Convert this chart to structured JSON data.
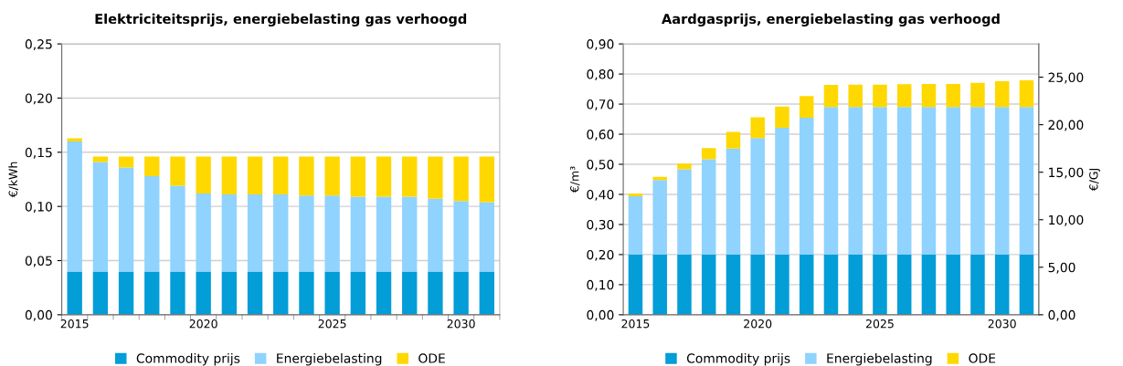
{
  "chart_data": [
    {
      "type": "bar",
      "title": "Elektriciteitsprijs, energiebelasting gas verhoogd",
      "ylabel": "€/kWh",
      "stacked": true,
      "grid": "y",
      "legend": "bottom",
      "categories": [
        "2015",
        null,
        null,
        null,
        null,
        "2020",
        null,
        null,
        null,
        null,
        "2025",
        null,
        null,
        null,
        null,
        "2030",
        null
      ],
      "ylim": [
        0,
        0.25
      ],
      "yticks": [
        {
          "value": 0,
          "label": "0,00"
        },
        {
          "value": 0.05,
          "label": "0,05"
        },
        {
          "value": 0.1,
          "label": "0,10"
        },
        {
          "value": 0.15,
          "label": "0,15"
        },
        {
          "value": 0.2,
          "label": "0,20"
        },
        {
          "value": 0.25,
          "label": "0,25"
        }
      ],
      "series": [
        {
          "name": "Commodity prijs",
          "color": "#039dd8",
          "values": [
            0.04,
            0.04,
            0.04,
            0.04,
            0.04,
            0.04,
            0.04,
            0.04,
            0.04,
            0.04,
            0.04,
            0.04,
            0.04,
            0.04,
            0.04,
            0.04,
            0.04
          ]
        },
        {
          "name": "Energiebelasting",
          "color": "#8fd3fe",
          "values": [
            0.12,
            0.101,
            0.096,
            0.088,
            0.079,
            0.072,
            0.071,
            0.071,
            0.071,
            0.07,
            0.07,
            0.069,
            0.069,
            0.069,
            0.067,
            0.065,
            0.064
          ]
        },
        {
          "name": "ODE",
          "color": "#ffd800",
          "values": [
            0.003,
            0.005,
            0.01,
            0.018,
            0.027,
            0.034,
            0.035,
            0.035,
            0.035,
            0.036,
            0.036,
            0.037,
            0.037,
            0.037,
            0.039,
            0.041,
            0.042
          ]
        }
      ]
    },
    {
      "type": "bar",
      "title": "Aardgasprijs, energiebelasting gas verhoogd",
      "ylabel": "€/m³",
      "y2label": "€/GJ",
      "stacked": true,
      "grid": "y",
      "legend": "bottom",
      "categories": [
        "2015",
        null,
        null,
        null,
        null,
        "2020",
        null,
        null,
        null,
        null,
        "2025",
        null,
        null,
        null,
        null,
        "2030",
        null
      ],
      "ylim": [
        0,
        0.9
      ],
      "yticks": [
        {
          "value": 0,
          "label": "0,00"
        },
        {
          "value": 0.1,
          "label": "0,10"
        },
        {
          "value": 0.2,
          "label": "0,20"
        },
        {
          "value": 0.3,
          "label": "0,30"
        },
        {
          "value": 0.4,
          "label": "0,40"
        },
        {
          "value": 0.5,
          "label": "0,50"
        },
        {
          "value": 0.6,
          "label": "0,60"
        },
        {
          "value": 0.7,
          "label": "0,70"
        },
        {
          "value": 0.8,
          "label": "0,80"
        },
        {
          "value": 0.9,
          "label": "0,90"
        }
      ],
      "y2lim": [
        0,
        28.5
      ],
      "y2ticks": [
        {
          "value": 0,
          "label": "0,00"
        },
        {
          "value": 5,
          "label": "5,00"
        },
        {
          "value": 10,
          "label": "10,00"
        },
        {
          "value": 15,
          "label": "15,00"
        },
        {
          "value": 20,
          "label": "20,00"
        },
        {
          "value": 25,
          "label": "25,00"
        }
      ],
      "series": [
        {
          "name": "Commodity prijs",
          "color": "#039dd8",
          "values": [
            0.2,
            0.2,
            0.2,
            0.2,
            0.2,
            0.2,
            0.2,
            0.2,
            0.2,
            0.2,
            0.2,
            0.2,
            0.2,
            0.2,
            0.2,
            0.2,
            0.2
          ]
        },
        {
          "name": "Energiebelasting",
          "color": "#8fd3fe",
          "values": [
            0.194,
            0.248,
            0.283,
            0.317,
            0.352,
            0.387,
            0.421,
            0.455,
            0.49,
            0.49,
            0.49,
            0.49,
            0.49,
            0.49,
            0.49,
            0.49,
            0.49
          ]
        },
        {
          "name": "ODE",
          "color": "#ffd800",
          "values": [
            0.009,
            0.01,
            0.019,
            0.037,
            0.056,
            0.069,
            0.071,
            0.072,
            0.074,
            0.075,
            0.075,
            0.076,
            0.077,
            0.077,
            0.081,
            0.086,
            0.089
          ]
        }
      ]
    }
  ]
}
